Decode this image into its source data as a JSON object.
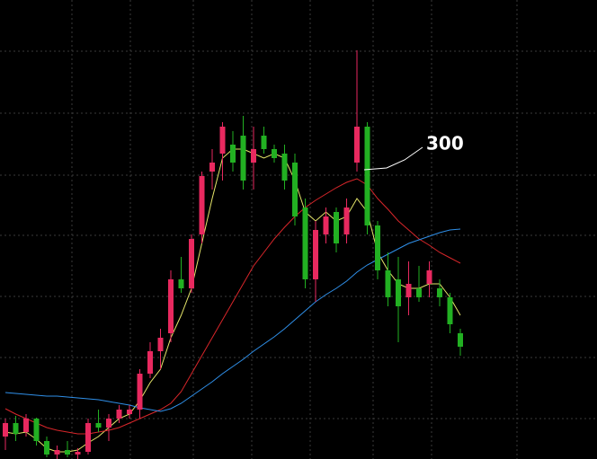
{
  "chart_data": {
    "type": "candlestick",
    "annotation": "300",
    "ylim": [
      0,
      511
    ],
    "up_color": "#e8295f",
    "down_color": "#22b022",
    "open": [
      25,
      40,
      30,
      45,
      20,
      5,
      10,
      5,
      8,
      40,
      35,
      45,
      50,
      55,
      95,
      120,
      140,
      200,
      190,
      250,
      320,
      340,
      350,
      360,
      330,
      360,
      345,
      340,
      330,
      280,
      200,
      250,
      275,
      250,
      330,
      370,
      260,
      210,
      200,
      180,
      190,
      195,
      190,
      180,
      140
    ],
    "high": [
      45,
      48,
      50,
      46,
      25,
      15,
      20,
      12,
      45,
      55,
      50,
      60,
      60,
      100,
      130,
      145,
      210,
      225,
      250,
      320,
      345,
      375,
      365,
      382,
      370,
      370,
      350,
      350,
      340,
      290,
      265,
      280,
      280,
      290,
      455,
      375,
      265,
      230,
      225,
      220,
      215,
      220,
      200,
      185,
      145
    ],
    "low": [
      10,
      20,
      25,
      15,
      2,
      0,
      2,
      0,
      5,
      30,
      20,
      40,
      45,
      45,
      90,
      100,
      130,
      185,
      185,
      240,
      300,
      310,
      320,
      300,
      300,
      340,
      330,
      300,
      260,
      190,
      175,
      240,
      230,
      240,
      320,
      250,
      200,
      170,
      130,
      160,
      175,
      180,
      170,
      140,
      115
    ],
    "close": [
      40,
      28,
      45,
      20,
      5,
      10,
      5,
      8,
      40,
      35,
      45,
      55,
      55,
      95,
      120,
      135,
      200,
      190,
      245,
      315,
      330,
      370,
      330,
      310,
      345,
      345,
      335,
      310,
      270,
      200,
      255,
      270,
      240,
      280,
      370,
      260,
      210,
      180,
      170,
      195,
      180,
      210,
      180,
      150,
      125
    ],
    "lines": [
      {
        "color": "#e6e66a",
        "values": [
          30,
          28,
          30,
          22,
          12,
          8,
          8,
          10,
          18,
          25,
          35,
          45,
          50,
          65,
          85,
          100,
          135,
          160,
          190,
          240,
          290,
          335,
          345,
          345,
          340,
          335,
          340,
          335,
          310,
          275,
          265,
          275,
          265,
          270,
          290,
          275,
          230,
          210,
          195,
          190,
          190,
          195,
          195,
          180,
          160
        ]
      },
      {
        "color": "#d8262a",
        "values": [
          56,
          50,
          45,
          40,
          35,
          32,
          30,
          28,
          28,
          30,
          32,
          35,
          40,
          45,
          50,
          55,
          62,
          75,
          95,
          115,
          135,
          155,
          175,
          195,
          215,
          230,
          245,
          258,
          270,
          280,
          288,
          295,
          302,
          308,
          312,
          305,
          290,
          278,
          265,
          255,
          245,
          238,
          230,
          224,
          218
        ]
      },
      {
        "color": "#2f8fe8",
        "values": [
          74,
          73,
          72,
          71,
          70,
          70,
          69,
          68,
          67,
          66,
          64,
          62,
          60,
          57,
          55,
          53,
          56,
          62,
          70,
          78,
          86,
          95,
          103,
          111,
          120,
          128,
          136,
          145,
          155,
          165,
          175,
          183,
          190,
          198,
          208,
          216,
          222,
          228,
          234,
          240,
          244,
          248,
          252,
          255,
          256
        ]
      }
    ]
  }
}
